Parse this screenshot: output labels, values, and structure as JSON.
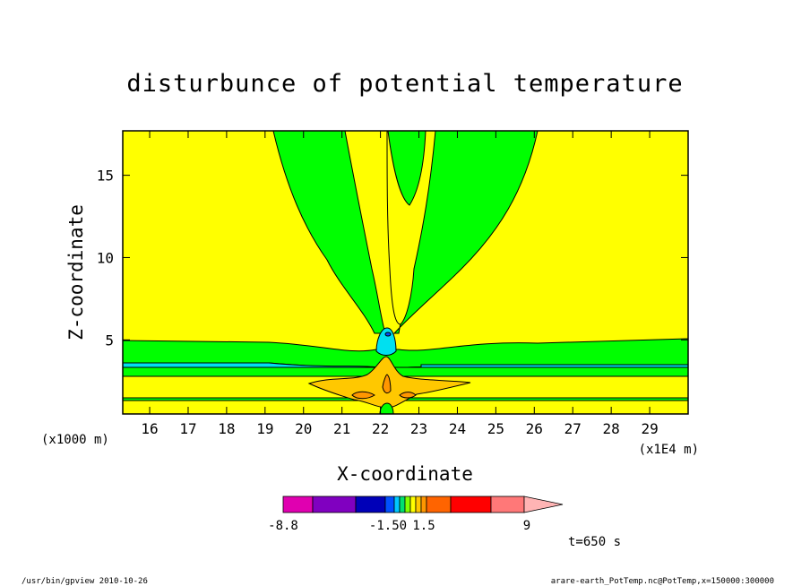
{
  "chart_data": {
    "type": "contour",
    "title": "disturbunce of potential temperature",
    "xlabel": "X-coordinate",
    "ylabel": "Z-coordinate",
    "x_unit": "(x1E4 m)",
    "y_unit": "(x1000 m)",
    "xlim": [
      15.3,
      30.0
    ],
    "ylim": [
      0.5,
      17.7
    ],
    "x_ticks": [
      16,
      17,
      18,
      19,
      20,
      21,
      22,
      23,
      24,
      25,
      26,
      27,
      28,
      29
    ],
    "y_ticks": [
      5,
      10,
      15
    ],
    "time_label": "t=650 s",
    "colorbar": {
      "labels": [
        "-8.8",
        "-1.50",
        "1.5",
        "9"
      ],
      "colors": [
        "#e000b0",
        "#8000c0",
        "#0000b8",
        "#0050ff",
        "#00c8ff",
        "#00e070",
        "#80ff00",
        "#ffff00",
        "#ffc800",
        "#ff9600",
        "#ff6400",
        "#ff0000",
        "#ff7878",
        "#ffb4b4"
      ]
    },
    "colors": {
      "background_field": "#ffff00",
      "near_zero_negative": "#00ff00",
      "negative": "#00ffff",
      "positive_low": "#ffc800",
      "positive_mid": "#ff9600"
    }
  },
  "footer": {
    "left": "/usr/bin/gpview   2010-10-26",
    "right": "arare-earth_PotTemp.nc@PotTemp,x=150000:300000"
  }
}
